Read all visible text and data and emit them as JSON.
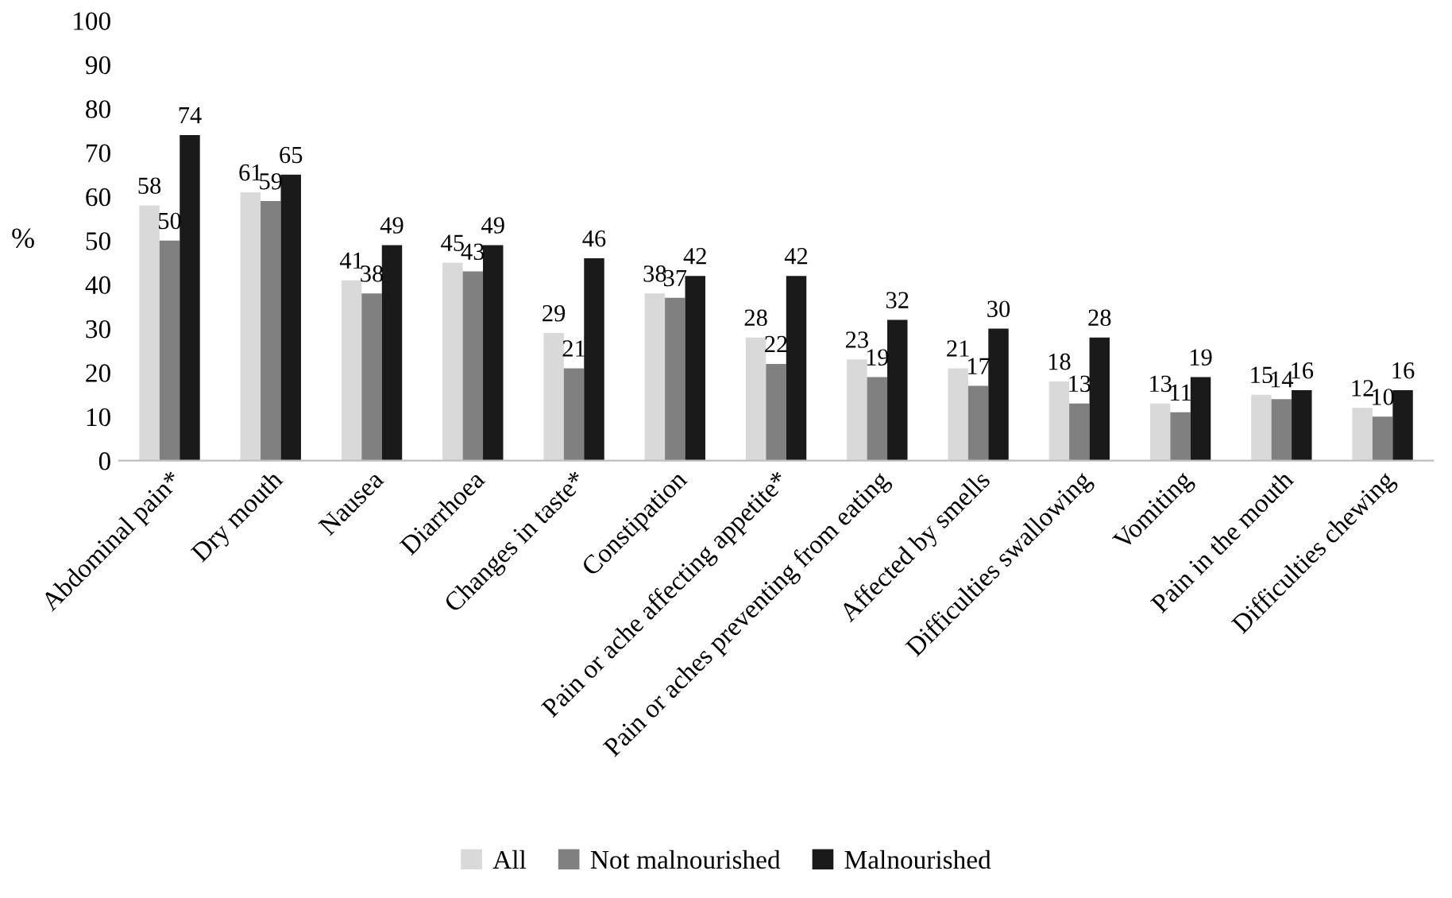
{
  "chart_data": {
    "type": "bar",
    "ylabel": "%",
    "categories": [
      "Abdominal pain*",
      "Dry mouth",
      "Nausea",
      "Diarrhoea",
      "Changes in taste*",
      "Constipation",
      "Pain or ache affecting appetite*",
      "Pain or aches preventing from eating",
      "Affected by smells",
      "Difficulties swallowing",
      "Vomiting",
      "Pain in the mouth",
      "Difficulties chewing"
    ],
    "series": [
      {
        "name": "All",
        "color": "#d9d9d9",
        "values": [
          58,
          61,
          41,
          45,
          29,
          38,
          28,
          23,
          21,
          18,
          13,
          15,
          12
        ]
      },
      {
        "name": "Not malnourished",
        "color": "#808080",
        "values": [
          50,
          59,
          38,
          43,
          21,
          37,
          22,
          19,
          17,
          13,
          11,
          14,
          10
        ]
      },
      {
        "name": "Malnourished",
        "color": "#1a1a1a",
        "values": [
          74,
          65,
          49,
          49,
          46,
          42,
          42,
          32,
          30,
          28,
          19,
          16,
          16
        ]
      }
    ],
    "ylim": [
      0,
      100
    ],
    "yticks": [
      0,
      10,
      20,
      30,
      40,
      50,
      60,
      70,
      80,
      90,
      100
    ],
    "data_labels": true,
    "legend": "bottom",
    "grid": false
  }
}
